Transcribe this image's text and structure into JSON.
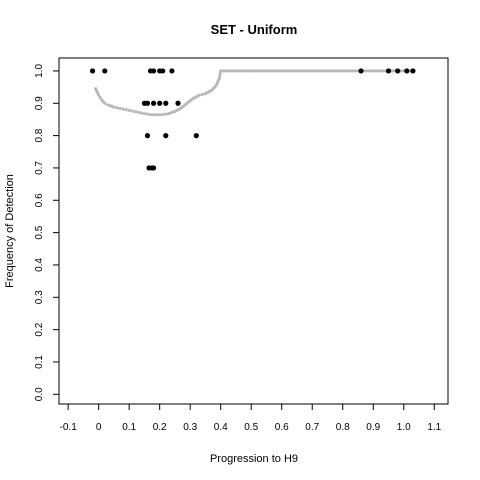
{
  "chart_data": {
    "type": "scatter",
    "title": "SET - Uniform",
    "xlabel": "Progression to H9",
    "ylabel": "Frequency of Detection",
    "xlim": [
      -0.13,
      1.145
    ],
    "ylim": [
      -0.03,
      1.04
    ],
    "x_ticks": [
      "-0.1",
      "0",
      "0.1",
      "0.2",
      "0.3",
      "0.4",
      "0.5",
      "0.6",
      "0.7",
      "0.8",
      "0.9",
      "1.0",
      "1.1"
    ],
    "y_ticks": [
      "0.0",
      "0.1",
      "0.2",
      "0.3",
      "0.4",
      "0.5",
      "0.6",
      "0.7",
      "0.8",
      "0.9",
      "1.0"
    ],
    "grid": false,
    "series": [
      {
        "color": "#000000",
        "points": [
          {
            "x": -0.02,
            "y": 1.0
          },
          {
            "x": 0.02,
            "y": 1.0
          },
          {
            "x": 0.17,
            "y": 1.0
          },
          {
            "x": 0.18,
            "y": 1.0
          },
          {
            "x": 0.2,
            "y": 1.0
          },
          {
            "x": 0.21,
            "y": 1.0
          },
          {
            "x": 0.24,
            "y": 1.0
          },
          {
            "x": 0.86,
            "y": 1.0
          },
          {
            "x": 0.95,
            "y": 1.0
          },
          {
            "x": 0.98,
            "y": 1.0
          },
          {
            "x": 1.01,
            "y": 1.0
          },
          {
            "x": 1.03,
            "y": 1.0
          },
          {
            "x": 0.15,
            "y": 0.9
          },
          {
            "x": 0.16,
            "y": 0.9
          },
          {
            "x": 0.18,
            "y": 0.9
          },
          {
            "x": 0.2,
            "y": 0.9
          },
          {
            "x": 0.22,
            "y": 0.9
          },
          {
            "x": 0.26,
            "y": 0.9
          },
          {
            "x": 0.16,
            "y": 0.8
          },
          {
            "x": 0.22,
            "y": 0.8
          },
          {
            "x": 0.32,
            "y": 0.8
          },
          {
            "x": 0.165,
            "y": 0.7
          },
          {
            "x": 0.175,
            "y": 0.7
          },
          {
            "x": 0.18,
            "y": 0.7
          }
        ]
      },
      {
        "color": "#b8b8b8",
        "smooth": true,
        "points": [
          {
            "x": -0.01,
            "y": 0.945
          },
          {
            "x": 0.0,
            "y": 0.925
          },
          {
            "x": 0.01,
            "y": 0.91
          },
          {
            "x": 0.02,
            "y": 0.9
          },
          {
            "x": 0.03,
            "y": 0.895
          },
          {
            "x": 0.05,
            "y": 0.888
          },
          {
            "x": 0.07,
            "y": 0.884
          },
          {
            "x": 0.09,
            "y": 0.88
          },
          {
            "x": 0.11,
            "y": 0.876
          },
          {
            "x": 0.13,
            "y": 0.872
          },
          {
            "x": 0.15,
            "y": 0.868
          },
          {
            "x": 0.17,
            "y": 0.865
          },
          {
            "x": 0.19,
            "y": 0.864
          },
          {
            "x": 0.21,
            "y": 0.865
          },
          {
            "x": 0.23,
            "y": 0.868
          },
          {
            "x": 0.25,
            "y": 0.875
          },
          {
            "x": 0.27,
            "y": 0.885
          },
          {
            "x": 0.29,
            "y": 0.9
          },
          {
            "x": 0.31,
            "y": 0.915
          },
          {
            "x": 0.33,
            "y": 0.925
          },
          {
            "x": 0.35,
            "y": 0.93
          },
          {
            "x": 0.37,
            "y": 0.94
          },
          {
            "x": 0.385,
            "y": 0.955
          },
          {
            "x": 0.395,
            "y": 0.975
          },
          {
            "x": 0.4,
            "y": 1.0
          },
          {
            "x": 0.5,
            "y": 1.0
          },
          {
            "x": 0.6,
            "y": 1.0
          },
          {
            "x": 0.7,
            "y": 1.0
          },
          {
            "x": 0.8,
            "y": 1.0
          },
          {
            "x": 0.9,
            "y": 1.0
          },
          {
            "x": 1.0,
            "y": 1.0
          },
          {
            "x": 1.03,
            "y": 1.0
          }
        ]
      }
    ]
  }
}
